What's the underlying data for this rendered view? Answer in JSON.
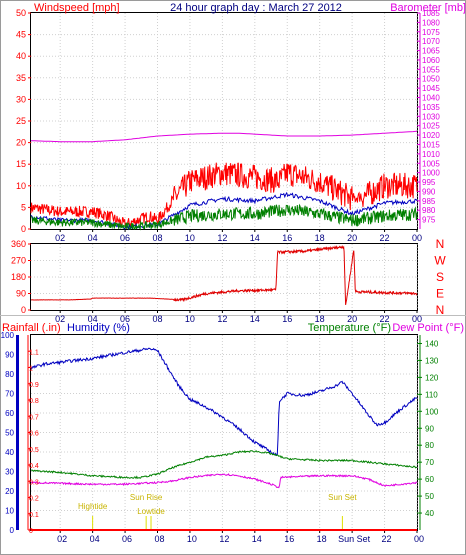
{
  "chart_data": [
    {
      "type": "line",
      "header": {
        "left_label": "Windspeed [mph]",
        "title": "24 hour graph day : March 27 2012",
        "right_label": "Barometer [mb]"
      },
      "x_ticks": [
        "02",
        "04",
        "06",
        "08",
        "10",
        "12",
        "14",
        "16",
        "18",
        "20",
        "22",
        "00"
      ],
      "y_left": {
        "ylim": [
          0,
          50
        ],
        "ticks": [
          "0",
          "5",
          "10",
          "15",
          "20",
          "25",
          "30",
          "35",
          "40",
          "45",
          "50"
        ]
      },
      "y_right": {
        "ylim": [
          970,
          1085
        ],
        "ticks": [
          "975",
          "980",
          "985",
          "990",
          "995",
          "1000",
          "1005",
          "1010",
          "1015",
          "1020",
          "1025",
          "1030",
          "1035",
          "1040",
          "1045",
          "1050",
          "1055",
          "1060",
          "1065",
          "1070",
          "1075",
          "1080",
          "1085"
        ]
      },
      "series": [
        {
          "name": "Barometer",
          "color": "#e000e0",
          "axis": "right",
          "x": [
            0.2,
            2,
            4,
            6,
            8,
            10,
            12,
            13,
            14,
            16,
            18,
            20,
            22,
            24
          ],
          "values": [
            1017,
            1016.5,
            1016.5,
            1017.5,
            1019.5,
            1020.5,
            1021,
            1021,
            1020.5,
            1019.5,
            1019.5,
            1020,
            1021,
            1022
          ]
        },
        {
          "name": "Gust",
          "color": "#ff0000",
          "axis": "left",
          "noisy": true,
          "x": [
            0.2,
            2,
            4,
            5,
            6,
            7.5,
            8,
            9,
            10,
            12,
            14,
            15.5,
            16,
            18,
            20,
            21,
            22,
            24
          ],
          "values": [
            5,
            4,
            4,
            3,
            1,
            3,
            2,
            7,
            11,
            13,
            12,
            11,
            13,
            11,
            7,
            8,
            10,
            10
          ]
        },
        {
          "name": "Average",
          "color": "#0000c0",
          "axis": "left",
          "x": [
            0.2,
            2,
            4,
            6,
            8,
            10,
            12,
            14,
            16,
            18,
            20,
            22,
            24
          ],
          "values": [
            3,
            2,
            2,
            0.5,
            1,
            5.5,
            7,
            6.5,
            8,
            6.5,
            3.5,
            6,
            6.5
          ]
        },
        {
          "name": "Windspeed",
          "color": "#008000",
          "axis": "left",
          "noisy": true,
          "x": [
            0.2,
            2,
            4,
            6,
            8,
            10,
            12,
            14,
            16,
            18,
            20,
            22,
            24
          ],
          "values": [
            2,
            1.5,
            1.5,
            0.5,
            1,
            3,
            3.5,
            3.5,
            4.5,
            3.5,
            2,
            3,
            3.5
          ]
        }
      ]
    },
    {
      "type": "line",
      "x_ticks": [
        "02",
        "04",
        "06",
        "08",
        "10",
        "12",
        "14",
        "16",
        "18",
        "20",
        "22",
        "00"
      ],
      "y_left": {
        "ylim": [
          0,
          360
        ],
        "ticks": [
          "0",
          "90",
          "180",
          "270",
          "360"
        ]
      },
      "y_right": {
        "compass": [
          "N",
          "W",
          "S",
          "E",
          "N"
        ]
      },
      "series": [
        {
          "name": "Wind Direction",
          "color": "#e00000",
          "axis": "left",
          "noisy": true,
          "x": [
            0.2,
            2.5,
            3.9,
            4,
            7.5,
            9.5,
            11,
            13,
            15.3,
            15.4,
            17,
            19.5,
            19.6,
            20.1,
            20.2,
            22,
            24
          ],
          "values": [
            55,
            55,
            60,
            65,
            65,
            55,
            90,
            105,
            110,
            315,
            320,
            345,
            20,
            330,
            100,
            95,
            90
          ]
        }
      ]
    },
    {
      "type": "line",
      "header": {
        "rainfall_label": "Rainfall (.in)",
        "humidity_label": "Humidity (%)",
        "temperature_label": "Temperature (°F)",
        "dewpoint_label": "Dew Point (°F)"
      },
      "x_ticks": [
        "02",
        "04",
        "06",
        "08",
        "10",
        "12",
        "14",
        "16",
        "18",
        "Sun Set",
        "22",
        "00"
      ],
      "y_humidity": {
        "ylim": [
          0,
          100
        ],
        "ticks": [
          "0",
          "10",
          "20",
          "30",
          "40",
          "50",
          "60",
          "70",
          "80",
          "90",
          "100"
        ]
      },
      "y_rainfall": {
        "ylim": [
          0,
          1.2
        ],
        "ticks": [
          "0",
          "0.1",
          "0.2",
          "0.3",
          "0.4",
          "0.5",
          "0.6",
          "0.7",
          "0.8",
          "0.9",
          "1",
          "1.1"
        ]
      },
      "y_temperature": {
        "ylim": [
          30,
          145
        ],
        "ticks": [
          "40",
          "50",
          "60",
          "70",
          "80",
          "90",
          "100",
          "110",
          "120",
          "130",
          "140"
        ]
      },
      "annotations": [
        {
          "text": "Hightide",
          "x": 4.0,
          "color": "#e0e000"
        },
        {
          "text": "Sun Rise",
          "x": 7.3,
          "color": "#e0e000"
        },
        {
          "text": "Lowtide",
          "x": 7.6,
          "color": "#e0e000"
        },
        {
          "text": "Sun Set",
          "x": 19.4,
          "color": "#e0e000"
        }
      ],
      "series": [
        {
          "name": "Humidity",
          "color": "#0000c0",
          "axis": "humidity",
          "x": [
            0.2,
            1,
            2,
            4,
            6,
            7.5,
            8,
            8.5,
            9.3,
            10,
            11,
            12,
            13,
            14,
            15,
            15.4,
            15.5,
            16,
            17,
            18,
            19,
            19.4,
            20,
            21,
            21.5,
            22,
            23,
            24
          ],
          "values": [
            83,
            85,
            86,
            88,
            91,
            93,
            92,
            85,
            74,
            67,
            63,
            58,
            52,
            45,
            40,
            38,
            66,
            70,
            69,
            71,
            74,
            76,
            70,
            59,
            54,
            55,
            62,
            68
          ]
        },
        {
          "name": "Temperature",
          "color": "#008000",
          "axis": "temperature",
          "x": [
            0.2,
            2,
            4,
            6,
            7,
            8,
            9,
            10,
            11,
            12,
            13,
            14,
            15,
            16,
            18,
            20,
            22,
            24
          ],
          "values": [
            65,
            64,
            62,
            61,
            61,
            63,
            67,
            70,
            73,
            74,
            76,
            76.5,
            75,
            72,
            71,
            71,
            69,
            67
          ]
        },
        {
          "name": "Dew Point",
          "color": "#e000e0",
          "axis": "temperature",
          "x": [
            0.2,
            2,
            4,
            6,
            8,
            9,
            10,
            11,
            12,
            13,
            14,
            15,
            15.5,
            15.6,
            18,
            20,
            21,
            22,
            24
          ],
          "values": [
            58,
            57.5,
            57,
            57,
            58,
            59,
            61,
            62,
            63,
            62,
            60,
            57,
            55,
            61,
            62,
            62,
            60,
            56,
            58
          ]
        },
        {
          "name": "Rainfall",
          "color": "#ff0000",
          "axis": "rainfall",
          "x": [
            0,
            24
          ],
          "values": [
            0,
            0
          ]
        }
      ]
    }
  ]
}
